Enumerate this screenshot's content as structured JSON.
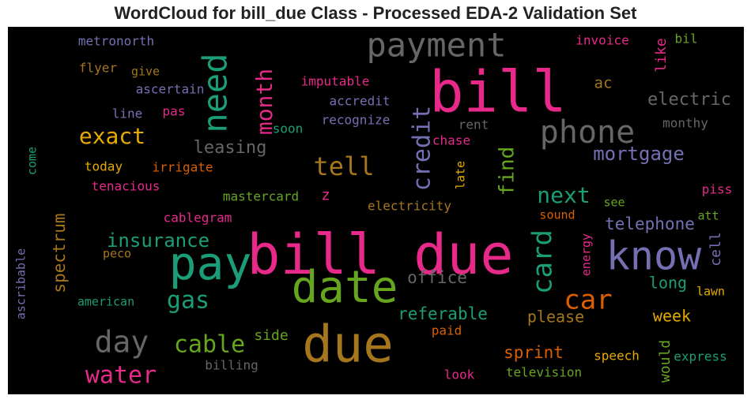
{
  "chart_data": {
    "type": "wordcloud",
    "title": "WordCloud for bill_due Class - Processed EDA-2 Validation Set",
    "background": "#000000",
    "palette": "Dark2",
    "words": [
      {
        "text": "bill due",
        "color": "#e7298a"
      },
      {
        "text": "bill",
        "color": "#e7298a"
      },
      {
        "text": "due",
        "color": "#a6761d"
      },
      {
        "text": "pay",
        "color": "#1b9e77"
      },
      {
        "text": "date",
        "color": "#66a61e"
      },
      {
        "text": "know",
        "color": "#7570b3"
      },
      {
        "text": "payment",
        "color": "#666666"
      },
      {
        "text": "need",
        "color": "#1b9e77"
      },
      {
        "text": "phone",
        "color": "#666666"
      },
      {
        "text": "day",
        "color": "#666666"
      },
      {
        "text": "car",
        "color": "#d95f02"
      },
      {
        "text": "card",
        "color": "#1b9e77"
      },
      {
        "text": "water",
        "color": "#e7298a"
      },
      {
        "text": "cable",
        "color": "#66a61e"
      },
      {
        "text": "gas",
        "color": "#1b9e77"
      },
      {
        "text": "exact",
        "color": "#e6ab02"
      },
      {
        "text": "tell",
        "color": "#a6761d"
      },
      {
        "text": "credit",
        "color": "#7570b3"
      },
      {
        "text": "month",
        "color": "#e7298a"
      },
      {
        "text": "next",
        "color": "#1b9e77"
      },
      {
        "text": "find",
        "color": "#66a61e"
      },
      {
        "text": "insurance",
        "color": "#1b9e77"
      },
      {
        "text": "mortgage",
        "color": "#7570b3"
      },
      {
        "text": "electric",
        "color": "#666666"
      },
      {
        "text": "telephone",
        "color": "#7570b3"
      },
      {
        "text": "spectrum",
        "color": "#a6761d"
      },
      {
        "text": "leasing",
        "color": "#666666"
      },
      {
        "text": "referable",
        "color": "#1b9e77"
      },
      {
        "text": "office",
        "color": "#666666"
      },
      {
        "text": "sprint",
        "color": "#d95f02"
      },
      {
        "text": "please",
        "color": "#a6761d"
      },
      {
        "text": "week",
        "color": "#e6ab02"
      },
      {
        "text": "long",
        "color": "#1b9e77"
      },
      {
        "text": "side",
        "color": "#66a61e"
      },
      {
        "text": "cell",
        "color": "#7570b3"
      },
      {
        "text": "would",
        "color": "#66a61e"
      },
      {
        "text": "ac",
        "color": "#a6761d"
      },
      {
        "text": "like",
        "color": "#e7298a"
      },
      {
        "text": "metronorth",
        "color": "#7570b3"
      },
      {
        "text": "invoice",
        "color": "#e7298a"
      },
      {
        "text": "bil",
        "color": "#66a61e"
      },
      {
        "text": "flyer",
        "color": "#a6761d"
      },
      {
        "text": "give",
        "color": "#a6761d"
      },
      {
        "text": "ascertain",
        "color": "#7570b3"
      },
      {
        "text": "imputable",
        "color": "#e7298a"
      },
      {
        "text": "accredit",
        "color": "#7570b3"
      },
      {
        "text": "line",
        "color": "#7570b3"
      },
      {
        "text": "pas",
        "color": "#e7298a"
      },
      {
        "text": "recognize",
        "color": "#7570b3"
      },
      {
        "text": "rent",
        "color": "#666666"
      },
      {
        "text": "monthy",
        "color": "#666666"
      },
      {
        "text": "soon",
        "color": "#1b9e77"
      },
      {
        "text": "chase",
        "color": "#e7298a"
      },
      {
        "text": "come",
        "color": "#1b9e77"
      },
      {
        "text": "today",
        "color": "#e6ab02"
      },
      {
        "text": "irrigate",
        "color": "#d95f02"
      },
      {
        "text": "late",
        "color": "#e6ab02"
      },
      {
        "text": "tenacious",
        "color": "#e7298a"
      },
      {
        "text": "mastercard",
        "color": "#66a61e"
      },
      {
        "text": "z",
        "color": "#e7298a"
      },
      {
        "text": "electricity",
        "color": "#a6761d"
      },
      {
        "text": "see",
        "color": "#66a61e"
      },
      {
        "text": "piss",
        "color": "#e7298a"
      },
      {
        "text": "cablegram",
        "color": "#e7298a"
      },
      {
        "text": "sound",
        "color": "#d95f02"
      },
      {
        "text": "att",
        "color": "#66a61e"
      },
      {
        "text": "peco",
        "color": "#a6761d"
      },
      {
        "text": "energy",
        "color": "#e7298a"
      },
      {
        "text": "ascribable",
        "color": "#7570b3"
      },
      {
        "text": "american",
        "color": "#1b9e77"
      },
      {
        "text": "lawn",
        "color": "#e6ab02"
      },
      {
        "text": "paid",
        "color": "#d95f02"
      },
      {
        "text": "billing",
        "color": "#666666"
      },
      {
        "text": "speech",
        "color": "#e6ab02"
      },
      {
        "text": "express",
        "color": "#1b9e77"
      },
      {
        "text": "television",
        "color": "#66a61e"
      },
      {
        "text": "look",
        "color": "#e7298a"
      }
    ]
  }
}
